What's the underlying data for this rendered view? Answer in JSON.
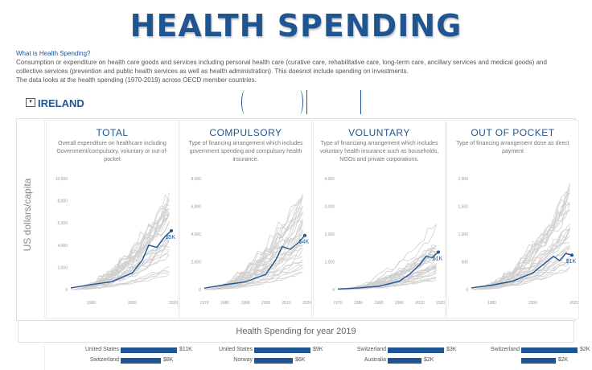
{
  "header": {
    "title": "HEALTH SPENDING",
    "question": "What is Health Spending?",
    "line1": "Consumption or expenditure on health care goods and services including personal health care (curative care, rehabilitative care, long-term care, ancillary services and medical goods) and",
    "line2": "collective services (prevention and public health services as well as health administration). This doesnot include spending on investments.",
    "line3": "The data looks at the health spending (1970-2019) across OECD member countries."
  },
  "filter": {
    "country": "IRELAND",
    "dropdown_icon": "chevron-down-icon"
  },
  "y_axis_label": "US dollars/capita",
  "accent_color": "#1f5591",
  "panels": [
    {
      "title": "TOTAL",
      "desc": "Overall expenditure on healthcare including Government/compulsory, voluntary or out-of-pocket"
    },
    {
      "title": "COMPULSORY",
      "desc": "Type of financing arrangement which includes government spending and compulsory health insurance."
    },
    {
      "title": "VOLUNTARY",
      "desc": "Type of financiang arrangement which includes voluntary health insurance such as households, NGOs and private corporations."
    },
    {
      "title": "OUT OF POCKET",
      "desc": "Type of financing arrangement done as direct payment"
    }
  ],
  "chart_data": [
    {
      "type": "line",
      "title": "TOTAL",
      "ylim": [
        0,
        10000
      ],
      "y_ticks": [
        "0",
        "2,000",
        "4,000",
        "6,000",
        "8,000",
        "10,000"
      ],
      "x_ticks": [
        "1980",
        "2000",
        "2020"
      ],
      "xlim": [
        1970,
        2019
      ],
      "highlight_series": {
        "name": "IRELAND",
        "label": "$5K",
        "x": [
          1970,
          1980,
          1990,
          2000,
          2005,
          2008,
          2012,
          2016,
          2019
        ],
        "y": [
          150,
          450,
          700,
          1500,
          2700,
          4000,
          3800,
          4800,
          5300
        ]
      }
    },
    {
      "type": "line",
      "title": "COMPULSORY",
      "ylim": [
        0,
        8000
      ],
      "y_ticks": [
        "0",
        "2,000",
        "4,000",
        "6,000",
        "8,000"
      ],
      "x_ticks": [
        "1970",
        "1980",
        "1990",
        "2000",
        "2010",
        "2020"
      ],
      "xlim": [
        1970,
        2019
      ],
      "highlight_series": {
        "name": "IRELAND",
        "label": "$4K",
        "x": [
          1970,
          1980,
          1990,
          2000,
          2005,
          2008,
          2012,
          2016,
          2019
        ],
        "y": [
          100,
          350,
          550,
          1100,
          2200,
          3100,
          2900,
          3400,
          3900
        ]
      }
    },
    {
      "type": "line",
      "title": "VOLUNTARY",
      "ylim": [
        0,
        4000
      ],
      "y_ticks": [
        "0",
        "1,000",
        "2,000",
        "3,000",
        "4,000"
      ],
      "x_ticks": [
        "1970",
        "1980",
        "1990",
        "2000",
        "2010",
        "2020"
      ],
      "xlim": [
        1970,
        2019
      ],
      "highlight_series": {
        "name": "IRELAND",
        "label": "$1K",
        "x": [
          1970,
          1980,
          1990,
          2000,
          2005,
          2010,
          2013,
          2016,
          2019
        ],
        "y": [
          20,
          60,
          120,
          300,
          550,
          900,
          1200,
          1150,
          1350
        ]
      }
    },
    {
      "type": "line",
      "title": "OUT OF POCKET",
      "ylim": [
        0,
        2000
      ],
      "y_ticks": [
        "0",
        "500",
        "1,000",
        "1,500",
        "2,000"
      ],
      "x_ticks": [
        "1980",
        "2000",
        "2020"
      ],
      "xlim": [
        1970,
        2019
      ],
      "highlight_series": {
        "name": "IRELAND",
        "label": "$1K",
        "x": [
          1970,
          1980,
          1990,
          2000,
          2005,
          2010,
          2013,
          2016,
          2019
        ],
        "y": [
          30,
          80,
          150,
          300,
          450,
          600,
          520,
          650,
          620
        ]
      }
    }
  ],
  "year_section": {
    "title": "Health Spending for year 2019"
  },
  "top_bars": [
    {
      "country": "United States",
      "value_label": "$11K",
      "fraction": 1.0,
      "second_country": "Switzerland",
      "second_label": "$8K",
      "second_fraction": 0.72
    },
    {
      "country": "United States",
      "value_label": "$9K",
      "fraction": 1.0,
      "second_country": "Norway",
      "second_label": "$6K",
      "second_fraction": 0.68
    },
    {
      "country": "Switzerland",
      "value_label": "$3K",
      "fraction": 1.0,
      "second_country": "Australia",
      "second_label": "$2K",
      "second_fraction": 0.6
    },
    {
      "country": "Switzerland",
      "value_label": "$2K",
      "fraction": 1.0,
      "second_country": "",
      "second_label": "$2K",
      "second_fraction": 0.62
    }
  ]
}
